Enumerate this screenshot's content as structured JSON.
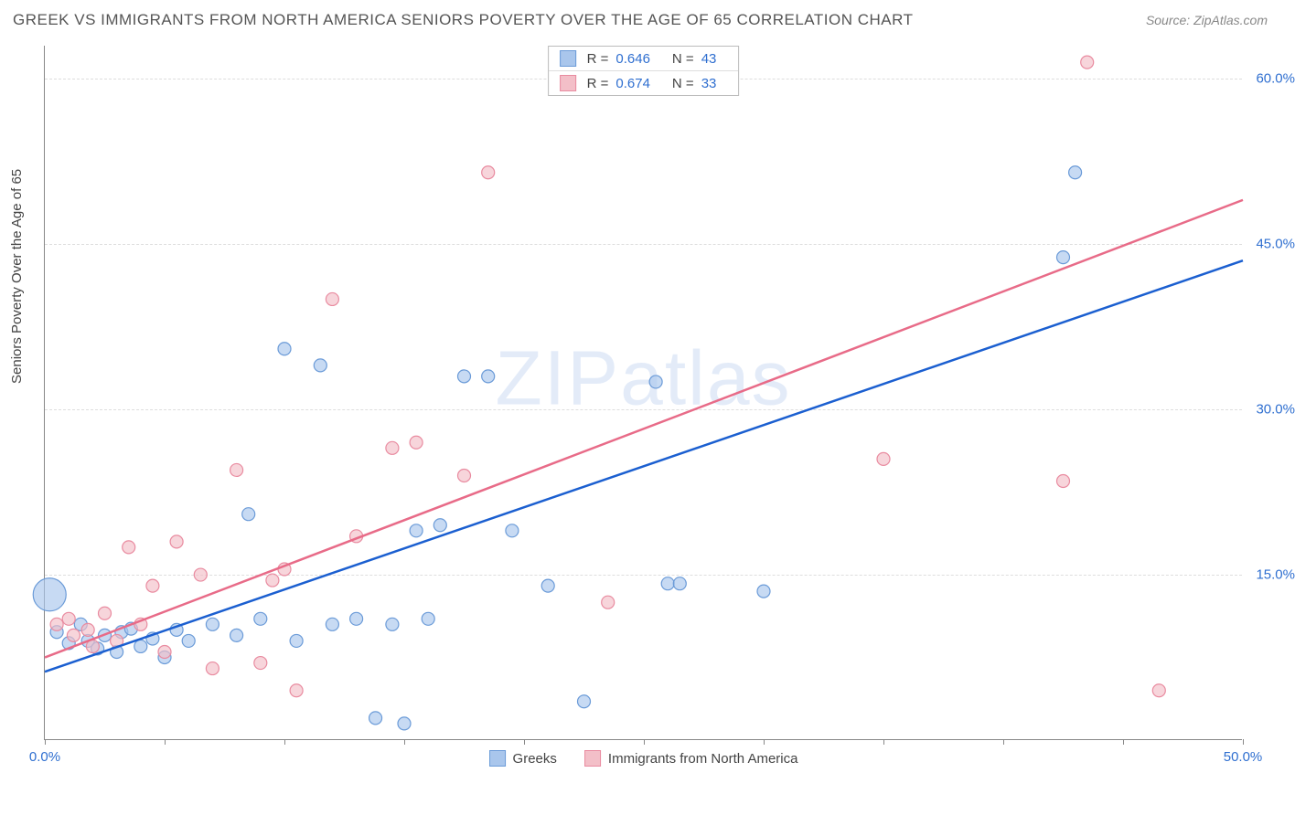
{
  "title": "GREEK VS IMMIGRANTS FROM NORTH AMERICA SENIORS POVERTY OVER THE AGE OF 65 CORRELATION CHART",
  "source": "Source: ZipAtlas.com",
  "ylabel": "Seniors Poverty Over the Age of 65",
  "watermark_a": "ZIP",
  "watermark_b": "atlas",
  "chart": {
    "type": "scatter",
    "xlim": [
      0,
      50
    ],
    "ylim": [
      0,
      63
    ],
    "background_color": "#ffffff",
    "grid_color": "#dddddd",
    "yticks": [
      15,
      30,
      45,
      60
    ],
    "ytick_labels": [
      "15.0%",
      "30.0%",
      "45.0%",
      "60.0%"
    ],
    "xticks": [
      0,
      5,
      10,
      15,
      20,
      25,
      30,
      35,
      40,
      45,
      50
    ],
    "xtick_labels": {
      "0": "0.0%",
      "50": "50.0%"
    },
    "axis_label_color": "#2f6fd0",
    "series": [
      {
        "name": "Greeks",
        "color_fill": "#a9c6ec",
        "color_stroke": "#6b9bd8",
        "fill_opacity": 0.65,
        "marker_r": 7,
        "R": "0.646",
        "N": "43",
        "trend": {
          "x1": 0,
          "y1": 6.2,
          "x2": 50,
          "y2": 43.5,
          "color": "#1b5fd0"
        },
        "points": [
          [
            0.2,
            13.2,
            18
          ],
          [
            0.5,
            9.8
          ],
          [
            1.0,
            8.8
          ],
          [
            1.5,
            10.5
          ],
          [
            1.8,
            9.0
          ],
          [
            2.2,
            8.3
          ],
          [
            2.5,
            9.5
          ],
          [
            3.0,
            8.0
          ],
          [
            3.2,
            9.8
          ],
          [
            3.6,
            10.1
          ],
          [
            4.0,
            8.5
          ],
          [
            4.5,
            9.2
          ],
          [
            5.0,
            7.5
          ],
          [
            5.5,
            10.0
          ],
          [
            6.0,
            9.0
          ],
          [
            7.0,
            10.5
          ],
          [
            8.0,
            9.5
          ],
          [
            8.5,
            20.5
          ],
          [
            9.0,
            11.0
          ],
          [
            10.0,
            35.5
          ],
          [
            10.5,
            9.0
          ],
          [
            11.5,
            34.0
          ],
          [
            12.0,
            10.5
          ],
          [
            13.0,
            11.0
          ],
          [
            13.8,
            2.0
          ],
          [
            14.5,
            10.5
          ],
          [
            15.0,
            1.5
          ],
          [
            15.5,
            19.0
          ],
          [
            16.0,
            11.0
          ],
          [
            16.5,
            19.5
          ],
          [
            17.5,
            33.0
          ],
          [
            18.5,
            33.0
          ],
          [
            19.5,
            19.0
          ],
          [
            21.0,
            14.0
          ],
          [
            22.5,
            3.5
          ],
          [
            25.5,
            32.5
          ],
          [
            26.0,
            14.2
          ],
          [
            26.5,
            14.2
          ],
          [
            30.0,
            13.5
          ],
          [
            42.5,
            43.8
          ],
          [
            43.0,
            51.5
          ]
        ]
      },
      {
        "name": "Immigrants from North America",
        "color_fill": "#f3bfc8",
        "color_stroke": "#e98ba0",
        "fill_opacity": 0.65,
        "marker_r": 7,
        "R": "0.674",
        "N": "33",
        "trend": {
          "x1": 0,
          "y1": 7.5,
          "x2": 50,
          "y2": 49.0,
          "color": "#e86b88"
        },
        "points": [
          [
            0.5,
            10.5
          ],
          [
            1.0,
            11.0
          ],
          [
            1.2,
            9.5
          ],
          [
            1.8,
            10.0
          ],
          [
            2.0,
            8.5
          ],
          [
            2.5,
            11.5
          ],
          [
            3.0,
            9.0
          ],
          [
            3.5,
            17.5
          ],
          [
            4.0,
            10.5
          ],
          [
            4.5,
            14.0
          ],
          [
            5.0,
            8.0
          ],
          [
            5.5,
            18.0
          ],
          [
            6.5,
            15.0
          ],
          [
            7.0,
            6.5
          ],
          [
            8.0,
            24.5
          ],
          [
            9.0,
            7.0
          ],
          [
            9.5,
            14.5
          ],
          [
            10.0,
            15.5
          ],
          [
            10.5,
            4.5
          ],
          [
            12.0,
            40.0
          ],
          [
            13.0,
            18.5
          ],
          [
            14.5,
            26.5
          ],
          [
            15.5,
            27.0
          ],
          [
            17.5,
            24.0
          ],
          [
            18.5,
            51.5
          ],
          [
            23.5,
            12.5
          ],
          [
            35.0,
            25.5
          ],
          [
            42.5,
            23.5
          ],
          [
            43.5,
            61.5
          ],
          [
            46.5,
            4.5
          ]
        ]
      }
    ]
  },
  "legend": {
    "series1": "Greeks",
    "series2": "Immigrants from North America",
    "R_label": "R =",
    "N_label": "N ="
  }
}
